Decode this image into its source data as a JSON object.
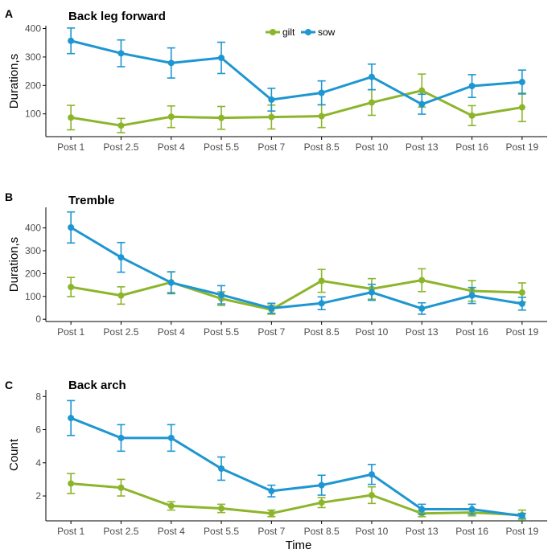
{
  "figure": {
    "x_title": "Time"
  },
  "legend": {
    "items": [
      {
        "label": "gilt",
        "color": "#8db52b"
      },
      {
        "label": "sow",
        "color": "#1d96d1"
      }
    ]
  },
  "chart_data": [
    {
      "type": "line",
      "panel": "A",
      "title": "Back leg forward",
      "ylabel": "Duration,s",
      "xlabel": "",
      "categories": [
        "Post 1",
        "Post 2.5",
        "Post 4",
        "Post 5.5",
        "Post 7",
        "Post 8.5",
        "Post 10",
        "Post 13",
        "Post 16",
        "Post 19"
      ],
      "ylim": [
        20,
        410
      ],
      "yticks": [
        100,
        200,
        300,
        400
      ],
      "series": [
        {
          "name": "gilt",
          "color": "#8db52b",
          "values": [
            87,
            59,
            90,
            86,
            89,
            92,
            140,
            182,
            94,
            123
          ],
          "err": [
            43,
            25,
            38,
            40,
            42,
            40,
            45,
            58,
            35,
            50
          ]
        },
        {
          "name": "sow",
          "color": "#1d96d1",
          "values": [
            357,
            313,
            279,
            297,
            150,
            174,
            230,
            134,
            198,
            212
          ],
          "err": [
            45,
            47,
            53,
            55,
            40,
            42,
            45,
            35,
            40,
            42
          ]
        }
      ]
    },
    {
      "type": "line",
      "panel": "B",
      "title": "Tremble",
      "ylabel": "Duration,s",
      "xlabel": "",
      "categories": [
        "Post 1",
        "Post 2.5",
        "Post 4",
        "Post 5.5",
        "Post 7",
        "Post 8.5",
        "Post 10",
        "Post 13",
        "Post 16",
        "Post 19"
      ],
      "ylim": [
        -10,
        490
      ],
      "yticks": [
        0,
        100,
        200,
        300,
        400
      ],
      "series": [
        {
          "name": "gilt",
          "color": "#8db52b",
          "values": [
            141,
            104,
            162,
            90,
            42,
            168,
            133,
            171,
            124,
            117
          ],
          "err": [
            42,
            38,
            45,
            30,
            20,
            50,
            45,
            50,
            45,
            42
          ]
        },
        {
          "name": "sow",
          "color": "#1d96d1",
          "values": [
            402,
            271,
            160,
            107,
            48,
            70,
            118,
            47,
            104,
            68
          ],
          "err": [
            68,
            65,
            48,
            40,
            22,
            28,
            35,
            25,
            35,
            28
          ]
        }
      ]
    },
    {
      "type": "line",
      "panel": "C",
      "title": "Back arch",
      "ylabel": "Count",
      "xlabel": "Time",
      "categories": [
        "Post 1",
        "Post 2.5",
        "Post 4",
        "Post 5.5",
        "Post 7",
        "Post 8.5",
        "Post 10",
        "Post 13",
        "Post 16",
        "Post 19"
      ],
      "ylim": [
        0.5,
        8.4
      ],
      "yticks": [
        2,
        4,
        6,
        8
      ],
      "series": [
        {
          "name": "gilt",
          "color": "#8db52b",
          "values": [
            2.75,
            2.5,
            1.4,
            1.25,
            0.95,
            1.6,
            2.05,
            0.95,
            1.0,
            0.85
          ],
          "err": [
            0.6,
            0.5,
            0.25,
            0.25,
            0.2,
            0.3,
            0.5,
            0.2,
            0.2,
            0.3
          ]
        },
        {
          "name": "sow",
          "color": "#1d96d1",
          "values": [
            6.7,
            5.5,
            5.5,
            3.65,
            2.3,
            2.65,
            3.3,
            1.2,
            1.2,
            0.8
          ],
          "err": [
            1.05,
            0.8,
            0.8,
            0.7,
            0.35,
            0.6,
            0.6,
            0.3,
            0.3,
            0.15
          ]
        }
      ]
    }
  ]
}
